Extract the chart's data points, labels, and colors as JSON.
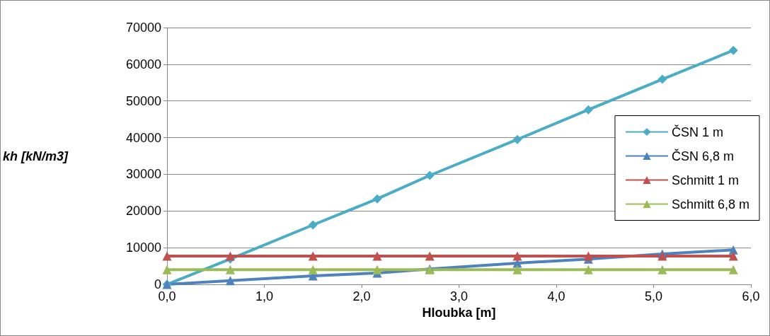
{
  "chart_data": {
    "type": "line",
    "xlabel": "Hloubka [m]",
    "ylabel": "kh [kN/m3]",
    "xlim": [
      0,
      6
    ],
    "xticks": [
      {
        "value": 0,
        "label": "0,0"
      },
      {
        "value": 1,
        "label": "1,0"
      },
      {
        "value": 2,
        "label": "2,0"
      },
      {
        "value": 3,
        "label": "3,0"
      },
      {
        "value": 4,
        "label": "4,0"
      },
      {
        "value": 5,
        "label": "5,0"
      },
      {
        "value": 6,
        "label": "6,0"
      }
    ],
    "ylim": [
      0,
      70000
    ],
    "yticks": [
      0,
      10000,
      20000,
      30000,
      40000,
      50000,
      60000,
      70000
    ],
    "x": [
      0,
      0.65,
      1.5,
      2.16,
      2.7,
      3.6,
      4.33,
      5.09,
      5.82
    ],
    "series": [
      {
        "name": "ČSN 1 m",
        "color": "#4bacc6",
        "marker": "diamond",
        "values": [
          0,
          6900,
          16200,
          23300,
          29700,
          39500,
          47600,
          55900,
          63800
        ]
      },
      {
        "name": "ČSN 6,8 m",
        "color": "#4f81bd",
        "marker": "triangle",
        "values": [
          0,
          1000,
          2300,
          3100,
          4200,
          5800,
          6900,
          8300,
          9400
        ]
      },
      {
        "name": "Schmitt 1 m",
        "color": "#c0504d",
        "marker": "triangle",
        "values": [
          7700,
          7700,
          7700,
          7700,
          7700,
          7700,
          7700,
          7700,
          7700
        ]
      },
      {
        "name": "Schmitt 6,8 m",
        "color": "#9bbb59",
        "marker": "triangle",
        "values": [
          4000,
          4000,
          4000,
          4000,
          4000,
          4000,
          4000,
          4000,
          4000
        ]
      }
    ],
    "grid": "y",
    "legend": "right"
  }
}
